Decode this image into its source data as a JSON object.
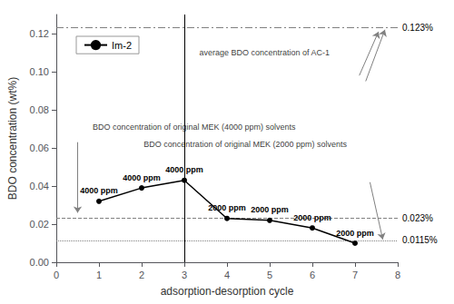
{
  "chart_data": {
    "type": "line",
    "x": [
      1,
      2,
      3,
      4,
      5,
      6,
      7
    ],
    "series": [
      {
        "name": "Im-2",
        "color": "black",
        "marker": "circle",
        "line_style": "solid",
        "values": [
          0.032,
          0.039,
          0.043,
          0.023,
          0.022,
          0.018,
          0.01
        ],
        "point_labels": [
          "4000 ppm",
          "4000 ppm",
          "4000 ppm",
          "2000 ppm",
          "2000 ppm",
          "2000 ppm",
          "2000 ppm"
        ]
      }
    ],
    "xlabel": "adsorption-desorption cycle",
    "ylabel": "BDO concentration (wt%)",
    "xlim": [
      0,
      8
    ],
    "ylim": [
      0.0,
      0.13
    ],
    "xticks": [
      0,
      1,
      2,
      3,
      4,
      5,
      6,
      7,
      8
    ],
    "yticks": [
      {
        "value": 0,
        "label": "0.00"
      },
      0.02,
      0.04,
      0.06,
      0.08,
      {
        "value": 0.1,
        "label": "0.10"
      },
      0.12
    ],
    "hlines": [
      {
        "value": 0.123,
        "label": "0.123%",
        "color": "gray",
        "line_style": "dashdot"
      },
      {
        "value": 0.023,
        "label": "0.023%",
        "color": "gray",
        "line_style": "dashed"
      },
      {
        "value": 0.0115,
        "label": "0.0115%",
        "color": "gray",
        "line_style": "dotted"
      }
    ],
    "vlines": [
      {
        "value": 3,
        "color": "black",
        "line_style": "solid"
      }
    ],
    "annotations": [
      {
        "text": "BDO concentration of original MEK (4000 ppm) solvents",
        "x": 0.85,
        "y": 0.071
      },
      {
        "text": "BDO concentration of original MEK (2000 ppm) solvents",
        "x": 2.05,
        "y": 0.062
      },
      {
        "text": "average BDO concentration of AC-1",
        "x": 3.35,
        "y": 0.11
      }
    ],
    "arrows": [
      {
        "from": [
          0.5,
          0.063
        ],
        "to": [
          0.5,
          0.026
        ],
        "color": "gray"
      },
      {
        "from": [
          7.1,
          0.098
        ],
        "to": [
          7.55,
          0.121
        ],
        "color": "gray"
      },
      {
        "from": [
          7.25,
          0.095
        ],
        "to": [
          7.7,
          0.122
        ],
        "color": "gray"
      },
      {
        "from": [
          7.35,
          0.042
        ],
        "to": [
          7.65,
          0.012
        ],
        "color": "gray"
      }
    ],
    "legend": "upper left",
    "grid": false
  }
}
